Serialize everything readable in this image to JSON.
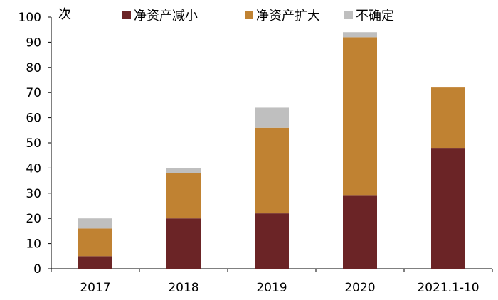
{
  "chart_data": {
    "type": "bar",
    "stacked": true,
    "categories": [
      "2017",
      "2018",
      "2019",
      "2020",
      "2021.1-10"
    ],
    "series": [
      {
        "name": "净资产减小",
        "color": "#6b2426",
        "values": [
          5,
          20,
          22,
          29,
          48
        ]
      },
      {
        "name": "净资产扩大",
        "color": "#c08232",
        "values": [
          11,
          18,
          34,
          63,
          24
        ]
      },
      {
        "name": "不确定",
        "color": "#bfbfbf",
        "values": [
          4,
          2,
          8,
          2,
          0
        ]
      }
    ],
    "ylabel": "次",
    "ylim": [
      0,
      100
    ],
    "yticks": [
      0,
      10,
      20,
      30,
      40,
      50,
      60,
      70,
      80,
      90,
      100
    ],
    "grid": false,
    "legend": "top"
  }
}
